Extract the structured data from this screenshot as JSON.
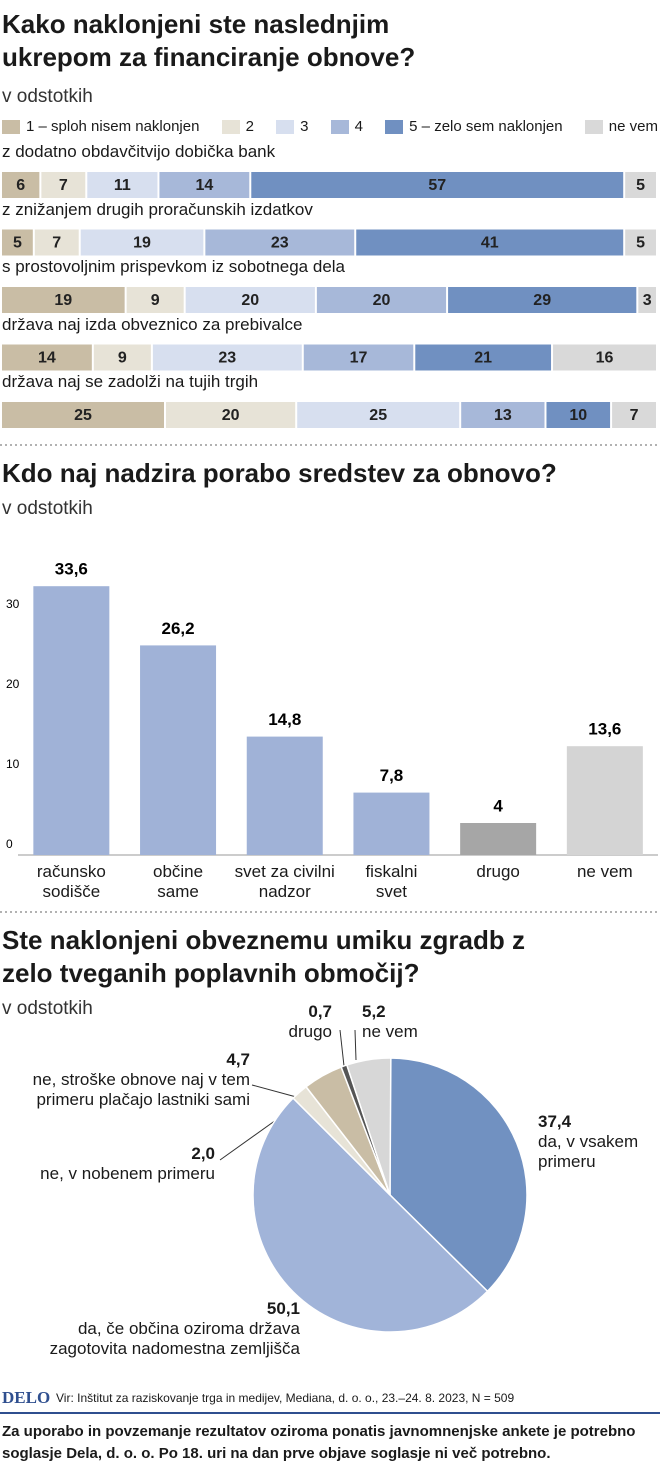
{
  "chart_data": [
    {
      "type": "stacked-bar",
      "title": "Kako naklonjeni ste naslednjim ukrepom za financiranje obnove?",
      "subtitle": "v odstotkih",
      "categories": [
        "z dodatno obdavčitvijo dobička bank",
        "z znižanjem drugih proračunskih izdatkov",
        "s prostovoljnim prispevkom iz sobotnega dela",
        "država naj izda obveznico za prebivalce",
        "država naj se zadolži na tujih trgih"
      ],
      "xlim": [
        0,
        100
      ],
      "series": [
        {
          "name": "1 – sploh nisem naklonjen",
          "color": "#c9bda5",
          "values": [
            6,
            5,
            19,
            14,
            25
          ]
        },
        {
          "name": "2",
          "color": "#e7e3d7",
          "values": [
            7,
            7,
            9,
            9,
            20
          ]
        },
        {
          "name": "3",
          "color": "#d7dfef",
          "values": [
            11,
            19,
            20,
            23,
            25
          ]
        },
        {
          "name": "4",
          "color": "#a7b8d9",
          "values": [
            14,
            23,
            20,
            17,
            13
          ]
        },
        {
          "name": "5 – zelo sem naklonjen",
          "color": "#7090c1",
          "values": [
            57,
            41,
            29,
            21,
            10
          ]
        },
        {
          "name": "ne vem",
          "color": "#d9d9d9",
          "values": [
            5,
            5,
            3,
            16,
            7
          ]
        }
      ]
    },
    {
      "type": "bar",
      "title": "Kdo naj nadzira porabo sredstev za obnovo?",
      "subtitle": "v odstotkih",
      "categories": [
        "računsko sodišče",
        "občine same",
        "svet za civilni nadzor",
        "fiskalni svet",
        "drugo",
        "ne vem"
      ],
      "values": [
        33.6,
        26.2,
        14.8,
        7.8,
        4,
        13.6
      ],
      "value_labels": [
        "33,6",
        "26,2",
        "14,8",
        "7,8",
        "4",
        "13,6"
      ],
      "colors": [
        "#a0b2d7",
        "#a0b2d7",
        "#a0b2d7",
        "#a0b2d7",
        "#a6a6a6",
        "#d4d4d4"
      ],
      "ylim": [
        0,
        35
      ],
      "yticks": [
        0,
        10,
        20,
        30
      ]
    },
    {
      "type": "pie",
      "title": "Ste naklonjeni obveznemu umiku zgradb z zelo tveganih poplavnih območij?",
      "subtitle": "v odstotkih",
      "categories": [
        "da, v vsakem primeru",
        "da, če občina oziroma država zagotovita nadomestna zemljišča",
        "ne, v nobenem primeru",
        "ne, stroške obnove naj v tem primeru plačajo lastniki sami",
        "drugo",
        "ne vem"
      ],
      "values": [
        37.4,
        50.1,
        2.0,
        4.7,
        0.7,
        5.2
      ],
      "value_labels": [
        "37,4",
        "50,1",
        "2,0",
        "4,7",
        "0,7",
        "5,2"
      ],
      "colors": [
        "#7191c1",
        "#a1b4d9",
        "#e7e3d7",
        "#c9bda5",
        "#555555",
        "#d7d7d7"
      ]
    }
  ],
  "source": {
    "logo": "DELO",
    "text": "Vir: Inštitut za raziskovanje trga in medijev, Mediana, d. o. o., 23.–24. 8. 2023, N = 509"
  },
  "note": "Za uporabo in povzemanje rezultatov oziroma ponatis javnomnenjske ankete je potrebno soglasje Dela, d. o. o. Po 18. uri na dan prve objave soglasje ni več potrebno."
}
